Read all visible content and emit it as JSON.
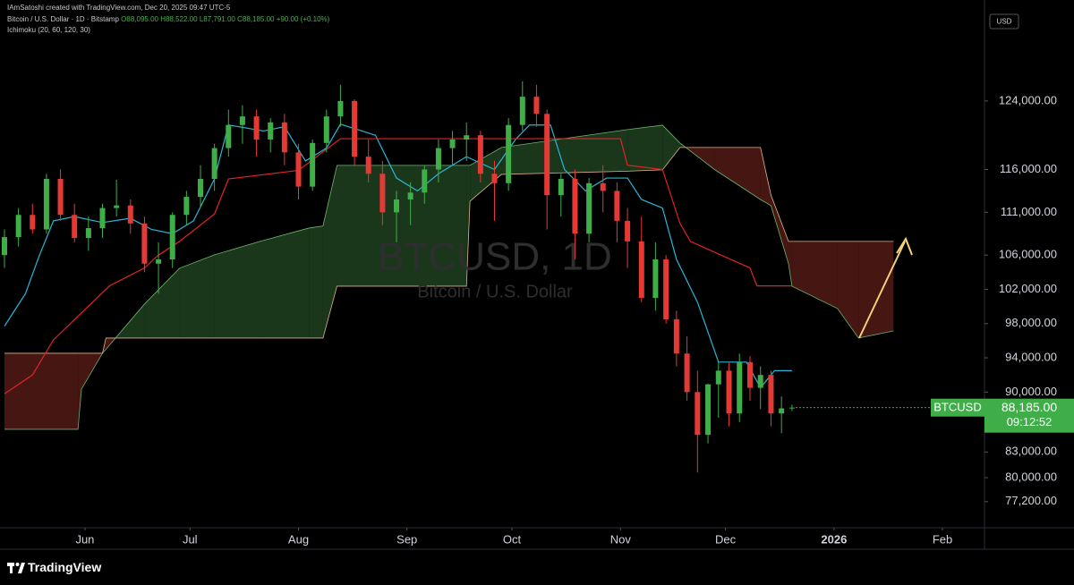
{
  "header": {
    "author_line": "IAmSatoshi created with TradingView.com, Dec 20, 2025 09:47 UTC-5",
    "legend": {
      "title": "Bitcoin / U.S. Dollar · 1D · Bitstamp",
      "open": "O88,095.00",
      "high": "H88,522.00",
      "low": "L87,791.00",
      "close": "C88,185.00",
      "change": "+90.00 (+0.10%)"
    },
    "indicator": "Ichimoku (20, 60, 120, 30)"
  },
  "footer": {
    "brand": "TradingView"
  },
  "chart_data": {
    "type": "candlestick",
    "watermark": "BTCUSD, 1D",
    "watermark_subtitle": "Bitcoin / U.S. Dollar",
    "currency": "USD",
    "grid": false,
    "xlim": [
      0,
      280
    ],
    "xticks": [
      {
        "value": 23,
        "label": "Jun"
      },
      {
        "value": 53,
        "label": "Jul"
      },
      {
        "value": 84,
        "label": "Aug"
      },
      {
        "value": 115,
        "label": "Sep"
      },
      {
        "value": 145,
        "label": "Oct"
      },
      {
        "value": 176,
        "label": "Nov"
      },
      {
        "value": 206,
        "label": "Dec"
      },
      {
        "value": 237,
        "label": "2026"
      },
      {
        "value": 268,
        "label": "Feb"
      }
    ],
    "ylim": [
      74150,
      135800
    ],
    "yticks": [
      {
        "value": 124000,
        "label": "124,000.00"
      },
      {
        "value": 116000,
        "label": "116,000.00"
      },
      {
        "value": 111000,
        "label": "111,000.00"
      },
      {
        "value": 106000,
        "label": "106,000.00"
      },
      {
        "value": 102000,
        "label": "102,000.00"
      },
      {
        "value": 98000,
        "label": "98,000.00"
      },
      {
        "value": 94000,
        "label": "94,000.00"
      },
      {
        "value": 90000,
        "label": "90,000.00"
      },
      {
        "value": 83000,
        "label": "83,000.00"
      },
      {
        "value": 80000,
        "label": "80,000.00"
      },
      {
        "value": 77200,
        "label": "77,200.00"
      }
    ],
    "candles": {
      "up_color": "#3fae49",
      "down_color": "#e53935",
      "x": [
        0,
        4,
        8,
        12,
        16,
        20,
        24,
        28,
        32,
        36,
        40,
        44,
        48,
        52,
        56,
        60,
        64,
        68,
        72,
        76,
        80,
        84,
        88,
        92,
        96,
        100,
        104,
        108,
        112,
        116,
        120,
        124,
        128,
        132,
        136,
        140,
        144,
        148,
        152,
        155,
        159,
        163,
        167,
        171,
        175,
        178,
        182,
        186,
        189,
        192,
        195,
        198,
        201,
        204,
        207,
        210,
        213,
        216,
        219,
        222,
        225
      ],
      "open": [
        106000,
        108100,
        110700,
        109000,
        114900,
        110700,
        108000,
        109150,
        111500,
        111800,
        109700,
        105000,
        105500,
        110700,
        112800,
        114900,
        118500,
        121200,
        122200,
        119500,
        121500,
        118000,
        114000,
        119100,
        122200,
        124000,
        117500,
        115500,
        111000,
        112500,
        113300,
        116000,
        118500,
        119500,
        120000,
        115500,
        114400,
        121200,
        124500,
        122500,
        113000,
        114900,
        108500,
        114400,
        113500,
        110000,
        107600,
        101000,
        105500,
        98500,
        94500,
        90000,
        85000,
        90900,
        92500,
        87500,
        93500,
        90500,
        92000,
        87500,
        88095
      ],
      "high": [
        109000,
        111500,
        112000,
        115500,
        116000,
        112000,
        110500,
        112000,
        114800,
        112500,
        110500,
        107500,
        111000,
        113500,
        116500,
        119000,
        123000,
        123500,
        123000,
        122000,
        122500,
        119000,
        119500,
        123000,
        125900,
        124200,
        119500,
        117000,
        113500,
        114500,
        116500,
        119500,
        120500,
        121500,
        120500,
        117000,
        122000,
        126300,
        125900,
        123000,
        115500,
        116000,
        115000,
        116500,
        114500,
        111500,
        110500,
        107500,
        106000,
        99500,
        96500,
        92500,
        91000,
        93500,
        93500,
        94500,
        94200,
        93000,
        92500,
        89500,
        88522
      ],
      "low": [
        104500,
        107000,
        108500,
        108500,
        110000,
        107500,
        106500,
        108000,
        110500,
        108500,
        104000,
        101500,
        104500,
        109500,
        111500,
        113500,
        117500,
        119000,
        117500,
        118000,
        116500,
        112500,
        113500,
        118000,
        121000,
        116500,
        114500,
        109500,
        107500,
        109500,
        112000,
        114500,
        116500,
        117000,
        114500,
        110000,
        113500,
        120500,
        121000,
        109000,
        110500,
        105500,
        107500,
        111000,
        107500,
        104500,
        100500,
        99500,
        98000,
        93000,
        89000,
        80600,
        84000,
        87000,
        86000,
        86500,
        89000,
        88000,
        86000,
        85200,
        87791
      ],
      "close": [
        108100,
        110700,
        109000,
        114900,
        110700,
        108000,
        109150,
        111500,
        111800,
        109700,
        105000,
        105500,
        110700,
        112800,
        114900,
        118500,
        121200,
        122200,
        119500,
        121500,
        118000,
        114000,
        119100,
        122200,
        124000,
        117500,
        115500,
        111000,
        112500,
        113300,
        116000,
        118500,
        119500,
        120000,
        115500,
        114400,
        121200,
        124500,
        122500,
        113000,
        114900,
        108500,
        114400,
        113500,
        110000,
        107600,
        101000,
        105500,
        98500,
        94500,
        90000,
        85000,
        90900,
        92500,
        87500,
        93500,
        90500,
        92000,
        87500,
        88095,
        88185
      ]
    },
    "lines": [
      {
        "color": "#29b6d8",
        "x": [
          0,
          6,
          10,
          14,
          20,
          28,
          36,
          42,
          48,
          54,
          60,
          64,
          74,
          80,
          86,
          92,
          96,
          106,
          112,
          118,
          124,
          132,
          140,
          146,
          150,
          156,
          160,
          166,
          172,
          178,
          182,
          188,
          192,
          198,
          204,
          212,
          216,
          220,
          225
        ],
        "values": [
          97700,
          101500,
          106000,
          110000,
          110500,
          109800,
          110300,
          109000,
          108500,
          110000,
          114900,
          121200,
          120500,
          121000,
          117000,
          118500,
          121300,
          120000,
          115000,
          113500,
          115500,
          117500,
          116000,
          119500,
          121200,
          121200,
          116000,
          113500,
          115000,
          115000,
          112500,
          111500,
          105500,
          100500,
          93500,
          93500,
          90500,
          92500,
          92500
        ]
      },
      {
        "color": "#e02424",
        "x": [
          0,
          8,
          14,
          30,
          40,
          44,
          50,
          60,
          64,
          84,
          96,
          154,
          176,
          178,
          188,
          193,
          196,
          213,
          215,
          225
        ],
        "values": [
          89800,
          92000,
          96100,
          102400,
          104500,
          106000,
          107600,
          110800,
          114900,
          115900,
          119600,
          119600,
          119600,
          116500,
          116000,
          109700,
          107600,
          104500,
          102400,
          102400
        ]
      }
    ],
    "cloud": {
      "up_color": "#1c3a1c",
      "down_color": "#4a1714",
      "span_a_color": "#6fb36f",
      "span_b_color": "#e0b38a",
      "x": [
        0,
        21,
        22,
        28,
        29,
        40,
        50,
        60,
        73,
        87,
        91,
        95,
        132,
        133,
        142,
        178,
        188,
        193,
        203,
        216,
        219,
        224,
        225,
        238,
        244,
        254
      ],
      "span_a": [
        85650,
        85650,
        90350,
        94530,
        95000,
        100280,
        104460,
        106030,
        107600,
        109160,
        109400,
        116480,
        116480,
        116480,
        118570,
        120660,
        121180,
        119090,
        115960,
        112500,
        111780,
        105000,
        102370,
        99760,
        96310,
        97140
      ],
      "span_b": [
        94530,
        94530,
        94530,
        94530,
        96310,
        96310,
        96310,
        96310,
        96310,
        96310,
        96310,
        102370,
        102370,
        112300,
        115430,
        115800,
        115960,
        118570,
        118570,
        118570,
        113000,
        107600,
        107600,
        107600,
        107600,
        107600
      ]
    },
    "last_price": {
      "symbol": "BTCUSD",
      "value_label": "88,185.00",
      "countdown": "09:12:52",
      "color": "#3fae49"
    }
  }
}
